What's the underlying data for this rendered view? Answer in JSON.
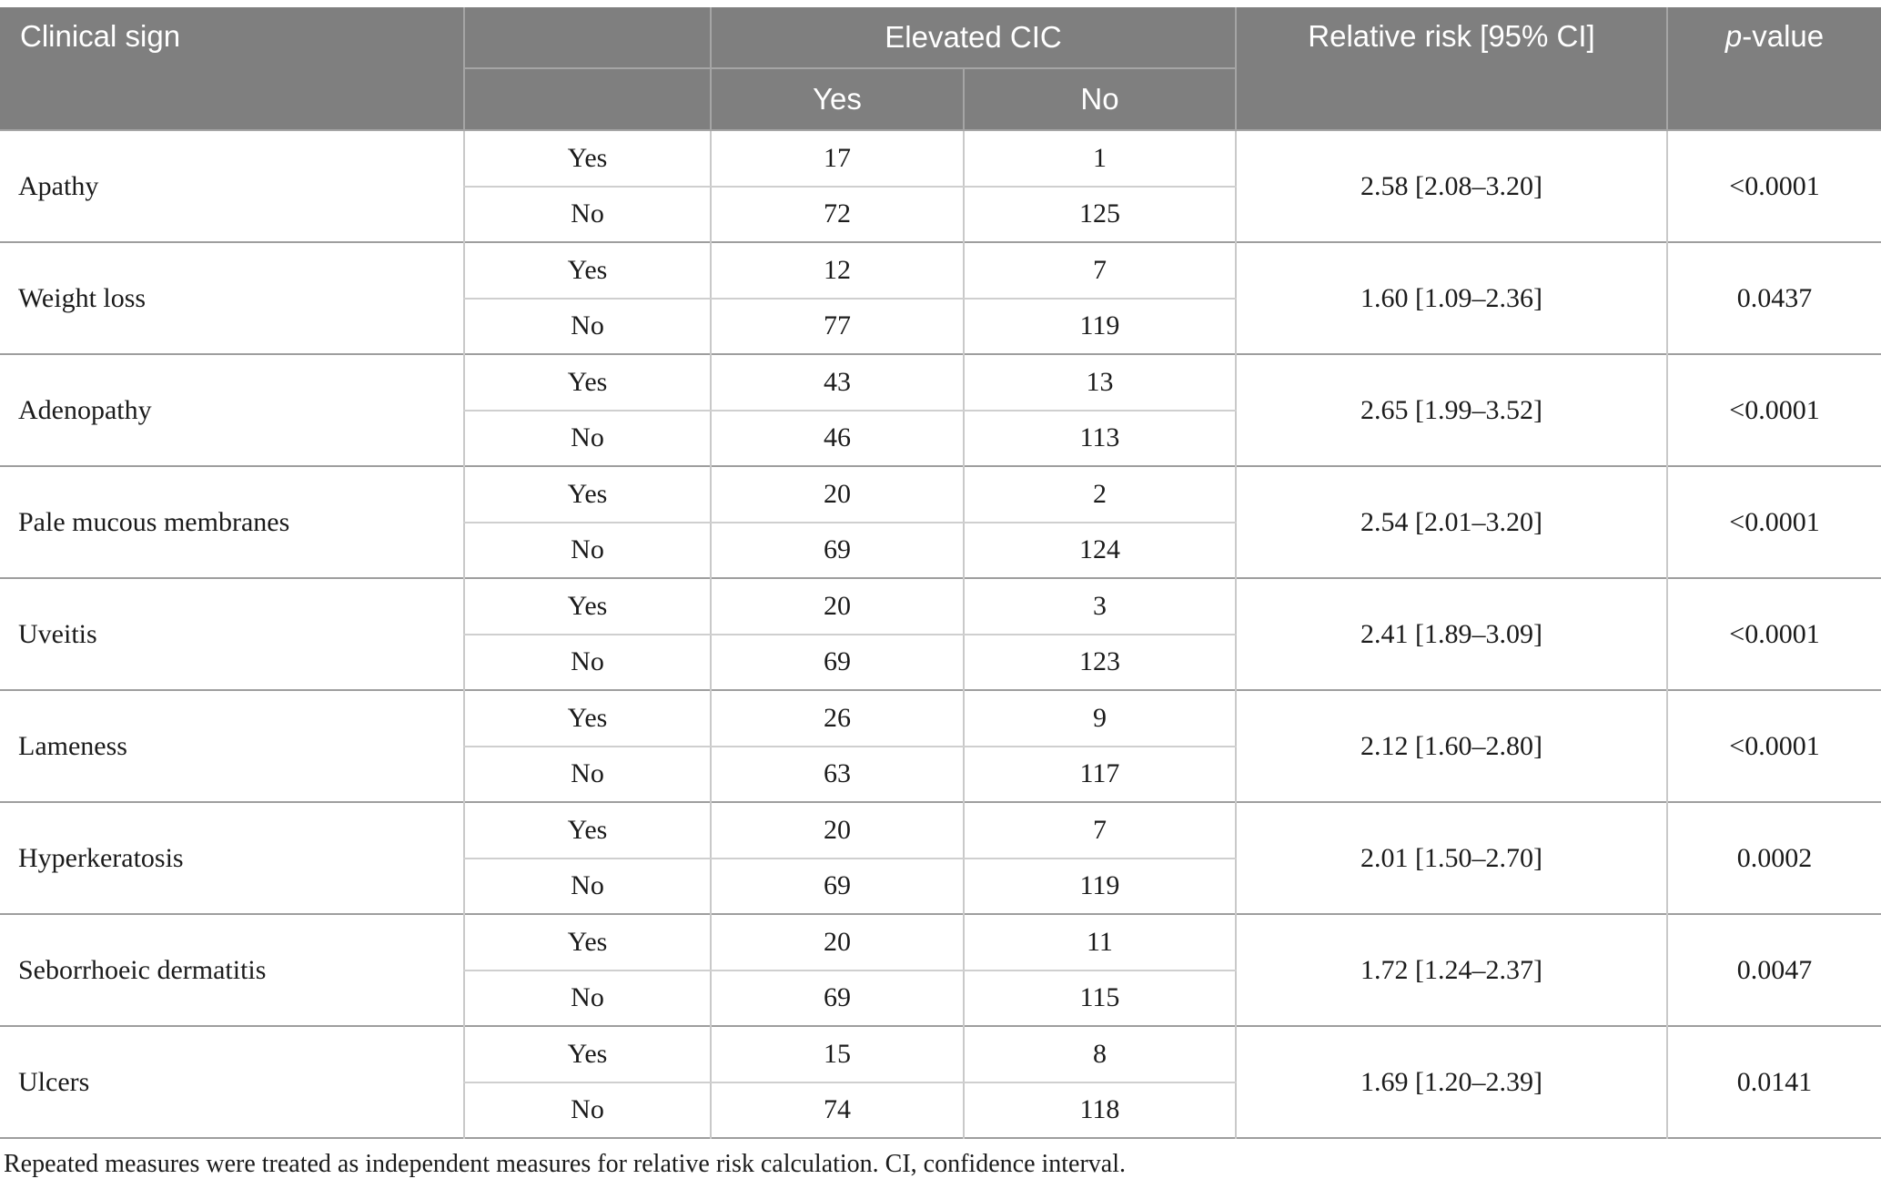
{
  "table": {
    "header": {
      "clinical_sign": "Clinical sign",
      "elevated_cic": "Elevated CIC",
      "yes": "Yes",
      "no": "No",
      "relative_risk": "Relative risk [95% CI]",
      "p_value_italic": "p",
      "p_value_rest": "-value"
    },
    "rows": [
      {
        "sign": "Apathy",
        "yes": {
          "label": "Yes",
          "cic_yes": "17",
          "cic_no": "1"
        },
        "no": {
          "label": "No",
          "cic_yes": "72",
          "cic_no": "125"
        },
        "relative_risk": "2.58 [2.08–3.20]",
        "p_value": "<0.0001"
      },
      {
        "sign": "Weight loss",
        "yes": {
          "label": "Yes",
          "cic_yes": "12",
          "cic_no": "7"
        },
        "no": {
          "label": "No",
          "cic_yes": "77",
          "cic_no": "119"
        },
        "relative_risk": "1.60 [1.09–2.36]",
        "p_value": "0.0437"
      },
      {
        "sign": "Adenopathy",
        "yes": {
          "label": "Yes",
          "cic_yes": "43",
          "cic_no": "13"
        },
        "no": {
          "label": "No",
          "cic_yes": "46",
          "cic_no": "113"
        },
        "relative_risk": "2.65 [1.99–3.52]",
        "p_value": "<0.0001"
      },
      {
        "sign": "Pale mucous membranes",
        "yes": {
          "label": "Yes",
          "cic_yes": "20",
          "cic_no": "2"
        },
        "no": {
          "label": "No",
          "cic_yes": "69",
          "cic_no": "124"
        },
        "relative_risk": "2.54 [2.01–3.20]",
        "p_value": "<0.0001"
      },
      {
        "sign": "Uveitis",
        "yes": {
          "label": "Yes",
          "cic_yes": "20",
          "cic_no": "3"
        },
        "no": {
          "label": "No",
          "cic_yes": "69",
          "cic_no": "123"
        },
        "relative_risk": "2.41 [1.89–3.09]",
        "p_value": "<0.0001"
      },
      {
        "sign": "Lameness",
        "yes": {
          "label": "Yes",
          "cic_yes": "26",
          "cic_no": "9"
        },
        "no": {
          "label": "No",
          "cic_yes": "63",
          "cic_no": "117"
        },
        "relative_risk": "2.12 [1.60–2.80]",
        "p_value": "<0.0001"
      },
      {
        "sign": "Hyperkeratosis",
        "yes": {
          "label": "Yes",
          "cic_yes": "20",
          "cic_no": "7"
        },
        "no": {
          "label": "No",
          "cic_yes": "69",
          "cic_no": "119"
        },
        "relative_risk": "2.01 [1.50–2.70]",
        "p_value": "0.0002"
      },
      {
        "sign": "Seborrhoeic dermatitis",
        "yes": {
          "label": "Yes",
          "cic_yes": "20",
          "cic_no": "11"
        },
        "no": {
          "label": "No",
          "cic_yes": "69",
          "cic_no": "115"
        },
        "relative_risk": "1.72 [1.24–2.37]",
        "p_value": "0.0047"
      },
      {
        "sign": "Ulcers",
        "yes": {
          "label": "Yes",
          "cic_yes": "15",
          "cic_no": "8"
        },
        "no": {
          "label": "No",
          "cic_yes": "74",
          "cic_no": "118"
        },
        "relative_risk": "1.69 [1.20–2.39]",
        "p_value": "0.0141"
      }
    ],
    "footnote": "Repeated measures were treated as independent measures for relative risk calculation. CI, confidence interval."
  },
  "colors": {
    "header_background": "#7f7f7f",
    "header_text": "#ffffff",
    "header_divider": "#a5a5a5",
    "group_divider": "#9e9e9e",
    "cell_divider": "#c9c9c9",
    "body_text": "#1b1b1b"
  }
}
